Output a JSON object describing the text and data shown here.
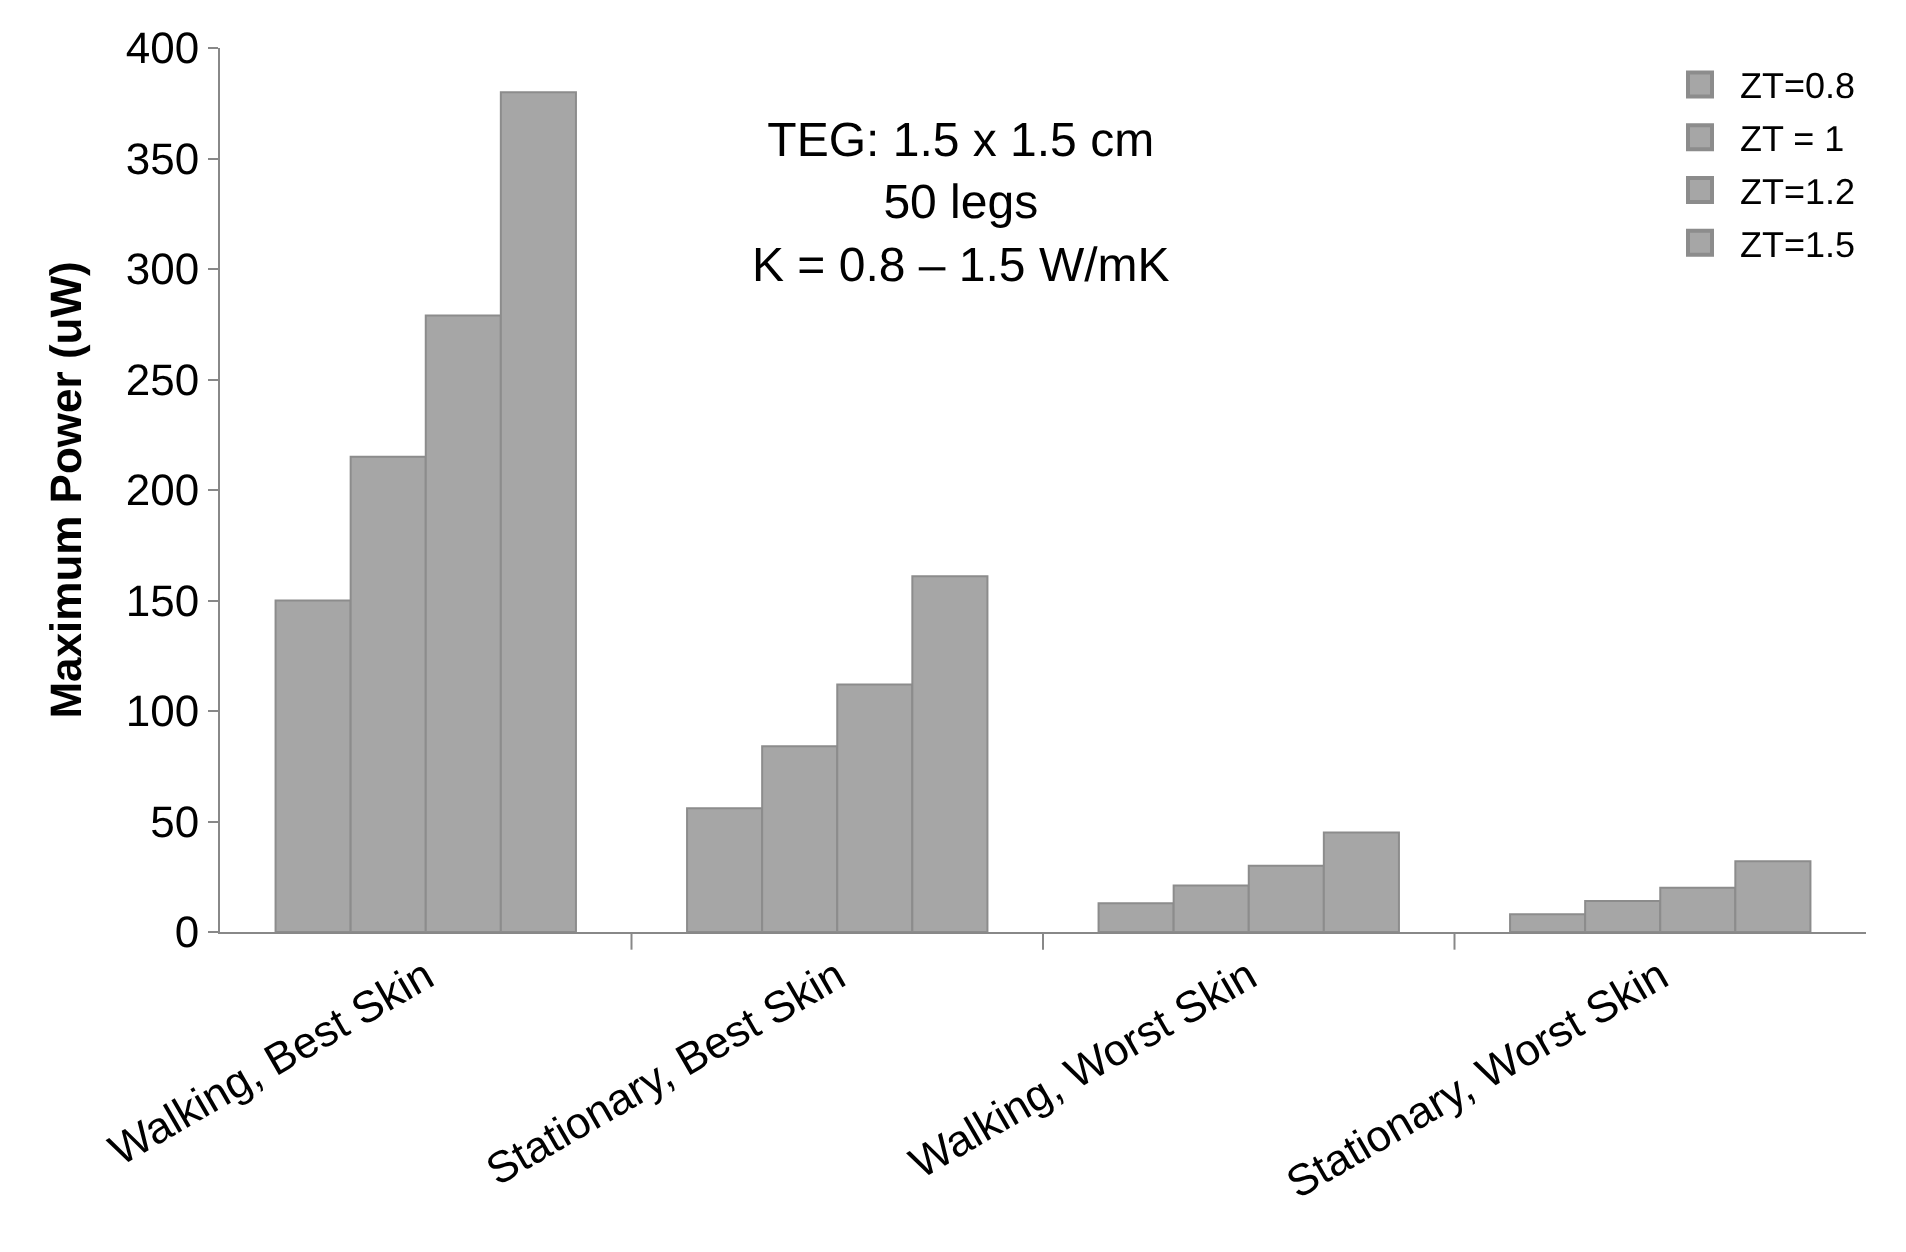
{
  "chart_data": {
    "type": "bar",
    "ylabel": "Maximum Power (uW)",
    "categories": [
      "Walking, Best Skin",
      "Stationary, Best Skin",
      "Walking, Worst Skin",
      "Stationary, Worst Skin"
    ],
    "series": [
      {
        "name": "ZT=0.8",
        "color": "#a6a6a6",
        "values": [
          150,
          56,
          13,
          8
        ]
      },
      {
        "name": "ZT = 1",
        "color": "#a6a6a6",
        "values": [
          215,
          84,
          21,
          14
        ]
      },
      {
        "name": "ZT=1.2",
        "color": "#a6a6a6",
        "values": [
          279,
          112,
          30,
          20
        ]
      },
      {
        "name": "ZT=1.5",
        "color": "#a6a6a6",
        "values": [
          380,
          161,
          45,
          32
        ]
      }
    ],
    "ylim": [
      0,
      400
    ],
    "yticks": [
      0,
      50,
      100,
      150,
      200,
      250,
      300,
      350,
      400
    ],
    "annotations": [
      "TEG: 1.5 x 1.5 cm\n50 legs\nK = 0.8 – 1.5 W/mK"
    ],
    "legend": "top right"
  }
}
